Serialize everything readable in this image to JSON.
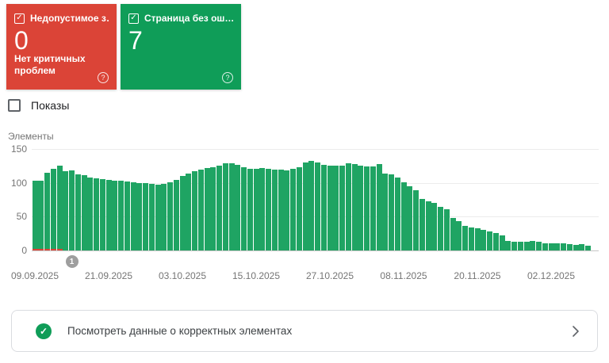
{
  "cards": [
    {
      "label": "Недопустимое з…",
      "value": "0",
      "subtitle": "Нет критичных проблем",
      "color": "#db4437",
      "checked": true,
      "checkmark": "✓",
      "help": "?"
    },
    {
      "label": "Страница без ош…",
      "value": "7",
      "subtitle": "",
      "color": "#0f9d58",
      "checked": true,
      "checkmark": "✓",
      "help": "?"
    }
  ],
  "impressions_toggle": {
    "label": "Показы",
    "checked": false
  },
  "chart_data": {
    "type": "bar",
    "title": "Элементы",
    "ylabel": "Элементы",
    "ylim": [
      0,
      150
    ],
    "yticks": [
      0,
      50,
      100,
      150
    ],
    "grid": true,
    "x_start_label": "09.09.2025",
    "x_tick_labels": [
      "09.09.2025",
      "21.09.2025",
      "03.10.2025",
      "15.10.2025",
      "27.10.2025",
      "08.11.2025",
      "20.11.2025",
      "02.12.2025"
    ],
    "x_tick_interval_days": 12,
    "series": [
      {
        "name": "valid-items",
        "color": "#1fa463",
        "values": [
          103,
          103,
          115,
          121,
          126,
          118,
          119,
          113,
          112,
          108,
          107,
          106,
          105,
          104,
          104,
          102,
          101,
          100,
          100,
          99,
          98,
          99,
          101,
          105,
          110,
          114,
          118,
          120,
          122,
          124,
          126,
          129,
          129,
          127,
          123,
          121,
          121,
          122,
          121,
          120,
          120,
          119,
          121,
          124,
          131,
          133,
          130,
          127,
          126,
          126,
          126,
          129,
          128,
          126,
          125,
          125,
          128,
          114,
          113,
          108,
          101,
          95,
          89,
          77,
          73,
          70,
          65,
          61,
          48,
          44,
          36,
          34,
          33,
          30,
          28,
          26,
          22,
          14,
          13,
          13,
          13,
          14,
          13,
          11,
          10,
          10,
          10,
          9,
          8,
          9,
          7
        ]
      },
      {
        "name": "error-items",
        "color": "#db4437",
        "values": [
          2,
          2,
          2,
          2,
          2
        ]
      }
    ],
    "annotation_badge": {
      "label": "1",
      "day_index": 6
    }
  },
  "footer_link": {
    "label": "Посмотреть данные о корректных элементах",
    "icon_check": "✓"
  },
  "colors": {
    "error_red": "#db4437",
    "valid_green": "#0f9d58",
    "bar_green": "#1fa463",
    "badge_gray": "#9e9e9e",
    "border_gray": "#dadce0"
  }
}
